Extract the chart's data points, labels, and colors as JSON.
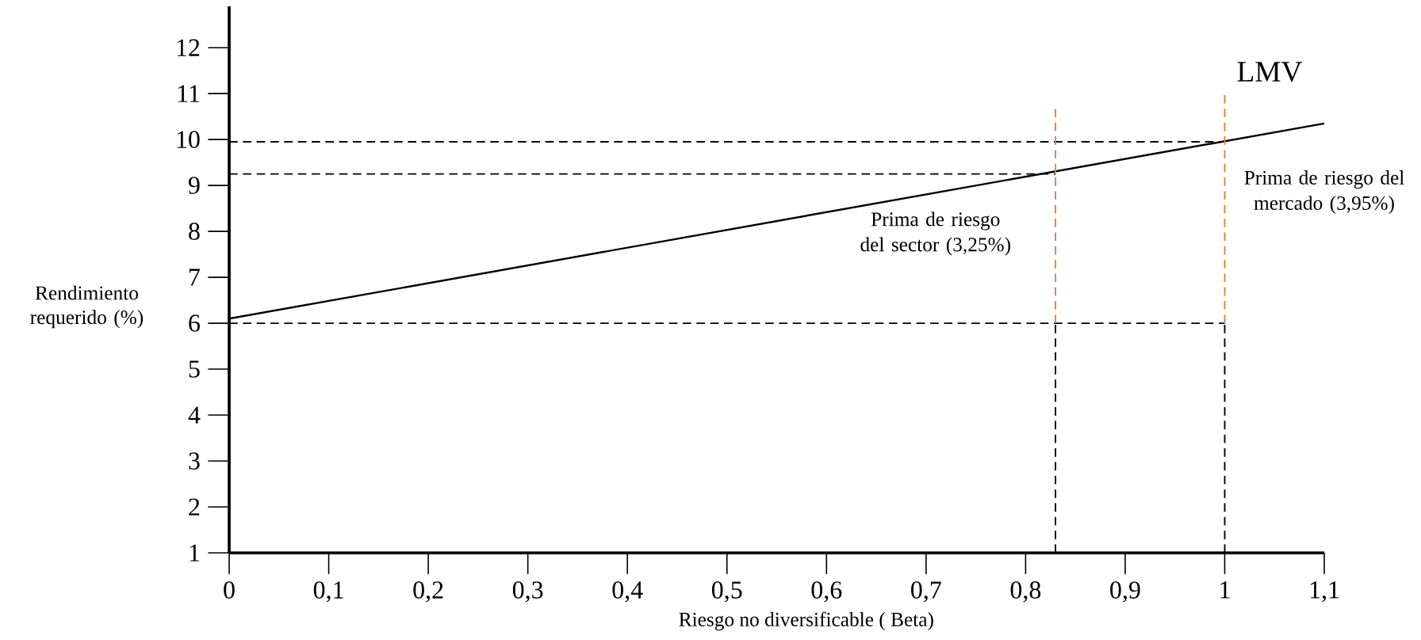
{
  "chart_data": {
    "type": "line",
    "xlabel": "Riesgo no diversificable ( Beta)",
    "ylabel": "Rendimiento requerido (%)",
    "xlim": [
      0,
      1.1
    ],
    "ylim": [
      1,
      12.9
    ],
    "xticks": [
      0,
      {
        "value": 0.1,
        "label": "0,1"
      },
      {
        "value": 0.2,
        "label": "0,2"
      },
      {
        "value": 0.3,
        "label": "0,3"
      },
      {
        "value": 0.4,
        "label": "0,4"
      },
      {
        "value": 0.5,
        "label": "0,5"
      },
      {
        "value": 0.6,
        "label": "0,6"
      },
      {
        "value": 0.7,
        "label": "0,7"
      },
      {
        "value": 0.8,
        "label": "0,8"
      },
      {
        "value": 0.9,
        "label": "0,9"
      },
      1,
      {
        "value": 1.1,
        "label": "1,1"
      }
    ],
    "yticks": [
      1,
      2,
      3,
      4,
      5,
      6,
      7,
      8,
      9,
      10,
      11,
      12
    ],
    "grid": false,
    "marker": "none",
    "series": [
      {
        "color": "#000000",
        "line_style": "solid",
        "x": [
          0,
          1.1
        ],
        "values": [
          6.1,
          10.35
        ]
      },
      {
        "color": "#000000",
        "line_style": "dashed",
        "x": [
          0,
          1
        ],
        "values": [
          6,
          6
        ]
      },
      {
        "color": "#000000",
        "line_style": "dashed",
        "x": [
          0,
          0.83
        ],
        "values": [
          9.25,
          9.25
        ]
      },
      {
        "color": "#000000",
        "line_style": "dashed",
        "x": [
          0,
          1
        ],
        "values": [
          9.95,
          9.95
        ]
      },
      {
        "color": "#000000",
        "line_style": "dashed",
        "x": [
          0.83,
          0.83
        ],
        "values": [
          1,
          6
        ]
      },
      {
        "color": "#000000",
        "line_style": "dashed",
        "x": [
          1,
          1
        ],
        "values": [
          1,
          6
        ]
      },
      {
        "color": "#ed7d31",
        "line_style": "dashed",
        "x": [
          0.83,
          0.83
        ],
        "values": [
          6,
          10.7
        ]
      },
      {
        "color": "#ed7d31",
        "line_style": "dashed",
        "x": [
          1,
          1
        ],
        "values": [
          6,
          11.05
        ]
      }
    ],
    "annotations": [
      "LMV",
      "Prima de riesgo del sector (3,25%)",
      "Prima de riesgo del mercado (3,95%)"
    ]
  }
}
